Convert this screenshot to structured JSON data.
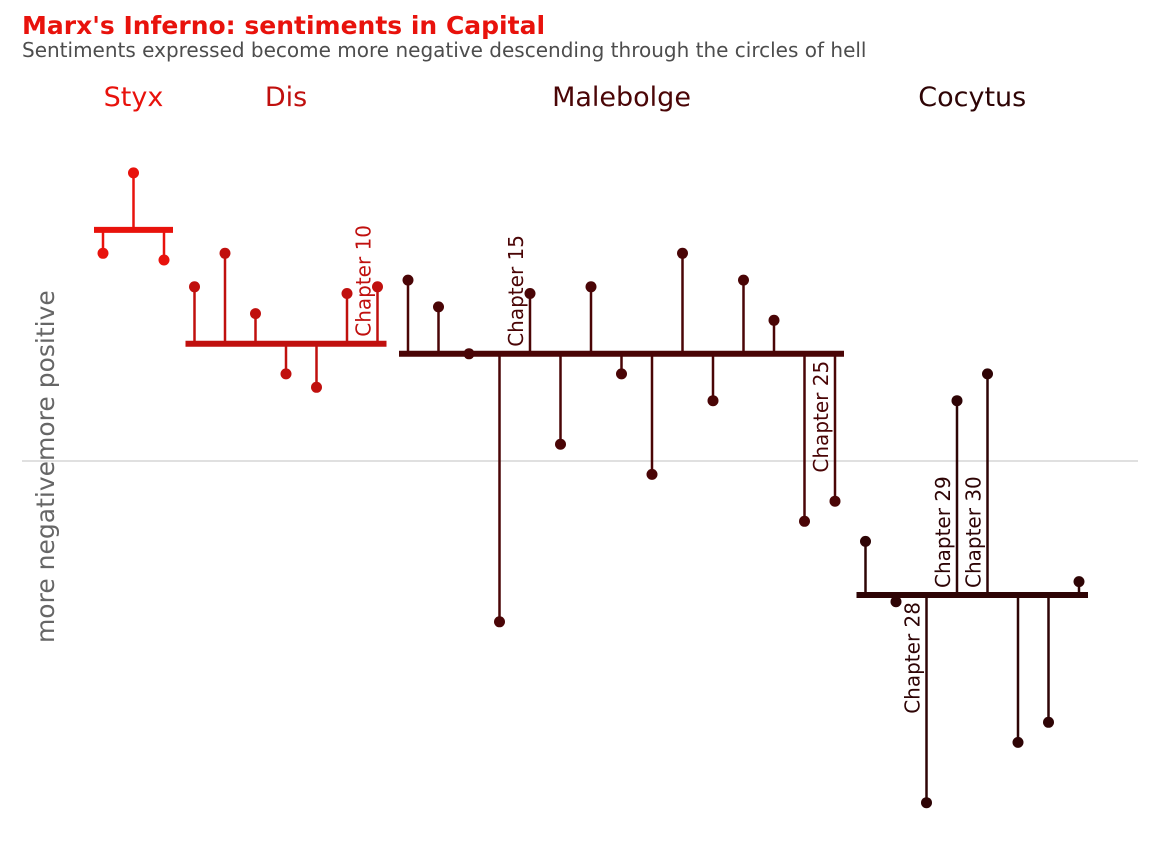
{
  "chart_data": {
    "type": "lollipop",
    "title": "Marx's Inferno: sentiments in Capital",
    "subtitle": "Sentiments expressed become more negative descending through the circles of hell",
    "ylabel_positive": "more positive",
    "ylabel_negative": "more negative",
    "ylim": [
      -0.6,
      0.48
    ],
    "zero_line": true,
    "groups": [
      {
        "name": "Styx",
        "color": "#E8120C",
        "baseline": 0.345,
        "chapters": [
          1,
          3
        ],
        "values": [
          0.31,
          0.43,
          0.3
        ],
        "labels": {}
      },
      {
        "name": "Dis",
        "color": "#C0100E",
        "baseline": 0.175,
        "chapters": [
          4,
          10
        ],
        "values": [
          0.26,
          0.31,
          0.22,
          0.13,
          0.11,
          0.25,
          0.26
        ],
        "labels": {
          "10": "Chapter 10"
        }
      },
      {
        "name": "Malebolge",
        "color": "#4A0506",
        "baseline": 0.16,
        "chapters": [
          11,
          25
        ],
        "values": [
          0.27,
          0.23,
          0.16,
          -0.24,
          0.25,
          0.025,
          0.26,
          0.13,
          -0.02,
          0.31,
          0.09,
          0.27,
          0.21,
          -0.09,
          -0.06
        ],
        "labels": {
          "15": "Chapter 15",
          "25": "Chapter 25"
        }
      },
      {
        "name": "Cocytus",
        "color": "#2E0405",
        "baseline": -0.2,
        "chapters": [
          26,
          33
        ],
        "values": [
          -0.12,
          -0.21,
          -0.51,
          0.09,
          0.13,
          -0.42,
          -0.39,
          -0.18
        ],
        "labels": {
          "28": "Chapter 28",
          "29": "Chapter 29",
          "30": "Chapter 30"
        }
      }
    ]
  }
}
